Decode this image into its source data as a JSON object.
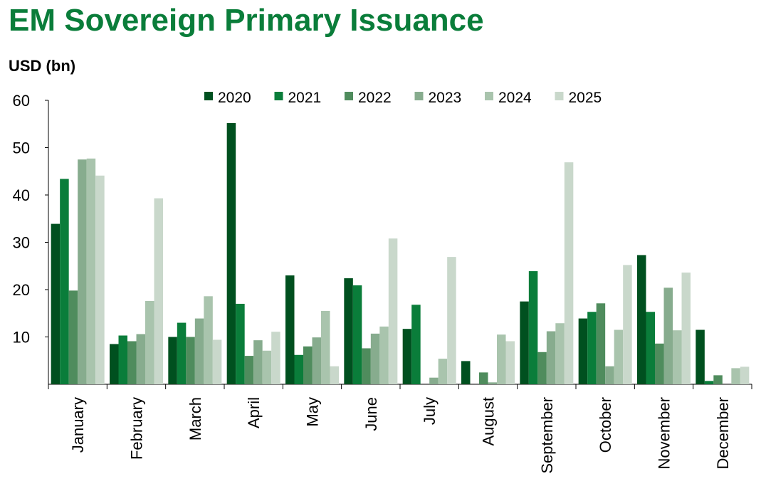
{
  "title": "EM Sovereign Primary Issuance",
  "unit_label": "USD (bn)",
  "chart_data": {
    "type": "bar",
    "title": "EM Sovereign Primary Issuance",
    "ylabel": "USD (bn)",
    "xlabel": "",
    "ylim": [
      0,
      60
    ],
    "yticks": [
      "10",
      "20",
      "30",
      "40",
      "50",
      "60"
    ],
    "legend_position": "top",
    "grid": false,
    "categories": [
      "January",
      "February",
      "March",
      "April",
      "May",
      "June",
      "July",
      "August",
      "September",
      "October",
      "November",
      "December"
    ],
    "series": [
      {
        "name": "2020",
        "color": "#00501f",
        "values": [
          33.9,
          8.5,
          10.0,
          55.2,
          23.0,
          22.4,
          11.7,
          4.9,
          17.5,
          13.9,
          27.3,
          11.5
        ]
      },
      {
        "name": "2021",
        "color": "#0a7d3a",
        "values": [
          43.4,
          10.3,
          13.0,
          17.0,
          6.2,
          20.9,
          16.8,
          0.0,
          23.9,
          15.3,
          15.3,
          0.7
        ]
      },
      {
        "name": "2022",
        "color": "#4f8c5d",
        "values": [
          19.8,
          9.1,
          10.0,
          6.0,
          8.0,
          7.6,
          0.0,
          2.5,
          6.8,
          17.1,
          8.6,
          1.9
        ]
      },
      {
        "name": "2023",
        "color": "#87ac8e",
        "values": [
          47.5,
          10.6,
          13.9,
          9.3,
          9.9,
          10.7,
          1.4,
          0.4,
          11.2,
          3.8,
          20.4,
          0.0
        ]
      },
      {
        "name": "2024",
        "color": "#a9c4ad",
        "values": [
          47.7,
          17.6,
          18.6,
          7.1,
          15.5,
          12.2,
          5.4,
          10.5,
          12.9,
          11.5,
          11.4,
          3.4
        ]
      },
      {
        "name": "2025",
        "color": "#c9d8cb",
        "values": [
          44.1,
          39.3,
          9.4,
          11.1,
          3.8,
          30.8,
          26.9,
          9.1,
          46.9,
          25.2,
          23.6,
          3.7
        ]
      }
    ]
  }
}
